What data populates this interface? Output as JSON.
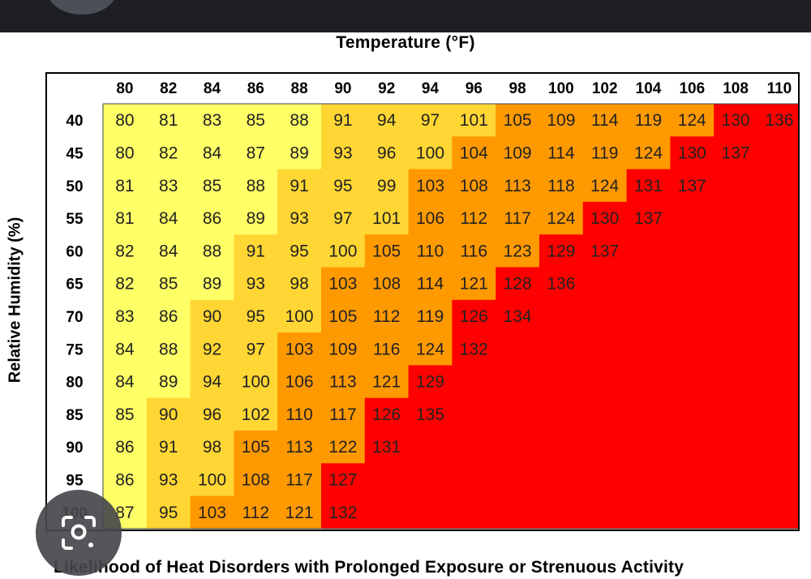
{
  "chart_data": {
    "type": "heatmap",
    "title": "Temperature (°F)",
    "xlabel": "Temperature (°F)",
    "ylabel": "Relative Humidity (%)",
    "x": [
      80,
      82,
      84,
      86,
      88,
      90,
      92,
      94,
      96,
      98,
      100,
      102,
      104,
      106,
      108,
      110
    ],
    "y": [
      40,
      45,
      50,
      55,
      60,
      65,
      70,
      75,
      80,
      85,
      90,
      95,
      100
    ],
    "values": [
      [
        80,
        81,
        83,
        85,
        88,
        91,
        94,
        97,
        101,
        105,
        109,
        114,
        119,
        124,
        130,
        136
      ],
      [
        80,
        82,
        84,
        87,
        89,
        93,
        96,
        100,
        104,
        109,
        114,
        119,
        124,
        130,
        137,
        null
      ],
      [
        81,
        83,
        85,
        88,
        91,
        95,
        99,
        103,
        108,
        113,
        118,
        124,
        131,
        137,
        null,
        null
      ],
      [
        81,
        84,
        86,
        89,
        93,
        97,
        101,
        106,
        112,
        117,
        124,
        130,
        137,
        null,
        null,
        null
      ],
      [
        82,
        84,
        88,
        91,
        95,
        100,
        105,
        110,
        116,
        123,
        129,
        137,
        null,
        null,
        null,
        null
      ],
      [
        82,
        85,
        89,
        93,
        98,
        103,
        108,
        114,
        121,
        128,
        136,
        null,
        null,
        null,
        null,
        null
      ],
      [
        83,
        86,
        90,
        95,
        100,
        105,
        112,
        119,
        126,
        134,
        null,
        null,
        null,
        null,
        null,
        null
      ],
      [
        84,
        88,
        92,
        97,
        103,
        109,
        116,
        124,
        132,
        null,
        null,
        null,
        null,
        null,
        null,
        null
      ],
      [
        84,
        89,
        94,
        100,
        106,
        113,
        121,
        129,
        null,
        null,
        null,
        null,
        null,
        null,
        null,
        null
      ],
      [
        85,
        90,
        96,
        102,
        110,
        117,
        126,
        135,
        null,
        null,
        null,
        null,
        null,
        null,
        null,
        null
      ],
      [
        86,
        91,
        98,
        105,
        113,
        122,
        131,
        null,
        null,
        null,
        null,
        null,
        null,
        null,
        null,
        null
      ],
      [
        86,
        93,
        100,
        108,
        117,
        127,
        null,
        null,
        null,
        null,
        null,
        null,
        null,
        null,
        null,
        null
      ],
      [
        87,
        95,
        103,
        112,
        121,
        132,
        null,
        null,
        null,
        null,
        null,
        null,
        null,
        null,
        null,
        null
      ]
    ],
    "colors": {
      "caution": "#ffff66",
      "extreme_caution": "#ffd633",
      "danger": "#ff9900",
      "extreme_danger": "#ff0000"
    },
    "category_thresholds": [
      90,
      103,
      125
    ],
    "legend": "none",
    "grid": false
  },
  "footer": {
    "note": "Likelihood of Heat Disorders with Prolonged Exposure or Strenuous Activity"
  },
  "ui": {
    "lens_icon": "lens-search-icon"
  }
}
